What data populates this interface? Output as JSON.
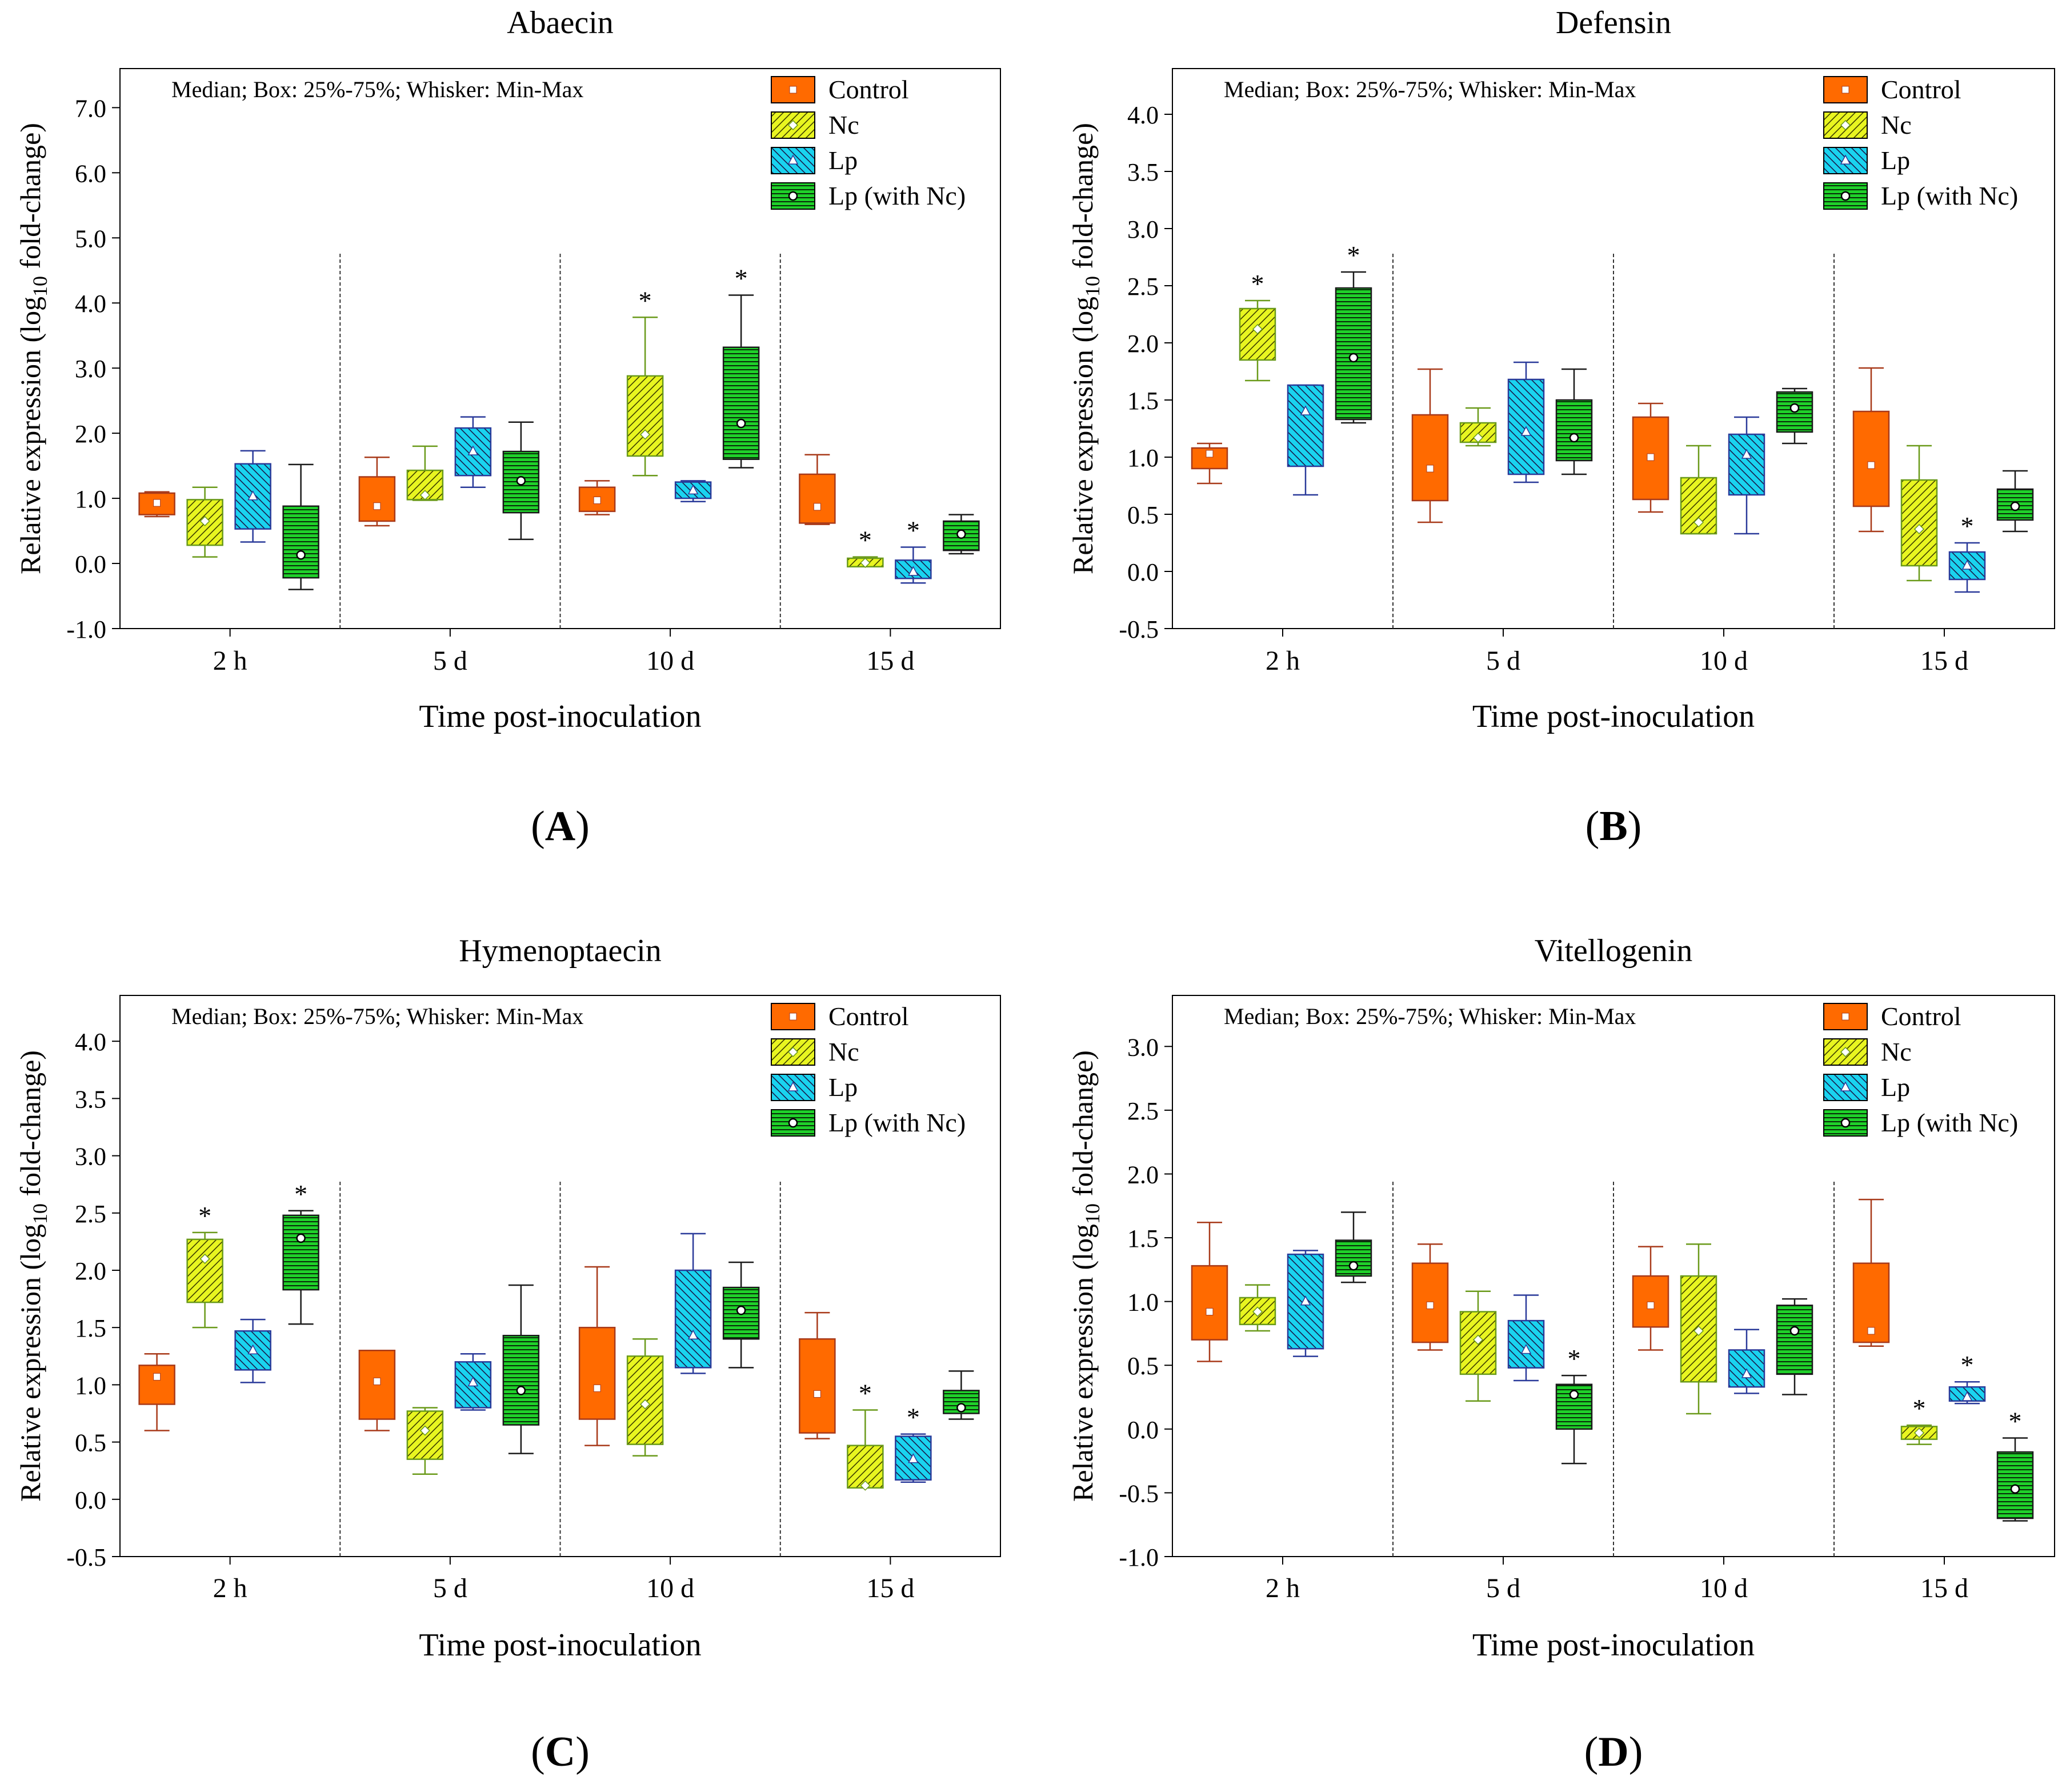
{
  "figure": {
    "legend_labels": [
      "Control",
      "Nc",
      "Lp",
      "Lp (with Nc)"
    ],
    "summary_note": "Median; Box: 25%-75%; Whisker: Min-Max",
    "colors": {
      "Control": "#ff6a00",
      "Nc": "#e8f520",
      "Lp": "#1ad3ef",
      "Lp (with Nc)": "#1fd12a"
    },
    "edge_colors": {
      "Control": "#a83a1a",
      "Nc": "#6a9a1a",
      "Lp": "#2a3a9a",
      "Lp (with Nc)": "#1a1a1a"
    }
  },
  "chart_data": [
    {
      "panel": "(A)",
      "title": "Abaecin",
      "type": "box",
      "xlabel": "Time post-inoculation",
      "ylabel": "Relative expression (log10 fold-change)",
      "ylim": [
        -1.0,
        7.6
      ],
      "yticks": [
        "-1.0",
        "0.0",
        "1.0",
        "2.0",
        "3.0",
        "4.0",
        "5.0",
        "6.0",
        "7.0"
      ],
      "categories": [
        "2 h",
        "5 d",
        "10 d",
        "15 d"
      ],
      "series": [
        {
          "name": "Control",
          "boxes": [
            {
              "min": 0.72,
              "q1": 0.75,
              "median": 0.93,
              "q3": 1.08,
              "max": 1.1,
              "sig": false
            },
            {
              "min": 0.58,
              "q1": 0.65,
              "median": 0.88,
              "q3": 1.33,
              "max": 1.63,
              "sig": false
            },
            {
              "min": 0.75,
              "q1": 0.8,
              "median": 0.97,
              "q3": 1.17,
              "max": 1.27,
              "sig": false
            },
            {
              "min": 0.6,
              "q1": 0.62,
              "median": 0.87,
              "q3": 1.37,
              "max": 1.67,
              "sig": false
            }
          ]
        },
        {
          "name": "Nc",
          "boxes": [
            {
              "min": 0.1,
              "q1": 0.28,
              "median": 0.65,
              "q3": 0.98,
              "max": 1.17,
              "sig": false
            },
            {
              "min": 0.97,
              "q1": 0.98,
              "median": 1.05,
              "q3": 1.43,
              "max": 1.8,
              "sig": false
            },
            {
              "min": 1.35,
              "q1": 1.65,
              "median": 1.98,
              "q3": 2.88,
              "max": 3.78,
              "sig": true
            },
            {
              "min": -0.05,
              "q1": -0.05,
              "median": 0.01,
              "q3": 0.08,
              "max": 0.1,
              "sig": true
            }
          ]
        },
        {
          "name": "Lp",
          "boxes": [
            {
              "min": 0.33,
              "q1": 0.53,
              "median": 1.03,
              "q3": 1.53,
              "max": 1.73,
              "sig": false
            },
            {
              "min": 1.17,
              "q1": 1.35,
              "median": 1.72,
              "q3": 2.08,
              "max": 2.25,
              "sig": false
            },
            {
              "min": 0.95,
              "q1": 1.0,
              "median": 1.12,
              "q3": 1.25,
              "max": 1.27,
              "sig": false
            },
            {
              "min": -0.3,
              "q1": -0.23,
              "median": -0.13,
              "q3": 0.05,
              "max": 0.25,
              "sig": true
            }
          ]
        },
        {
          "name": "Lp (with Nc)",
          "boxes": [
            {
              "min": -0.4,
              "q1": -0.22,
              "median": 0.13,
              "q3": 0.88,
              "max": 1.52,
              "sig": false
            },
            {
              "min": 0.37,
              "q1": 0.78,
              "median": 1.27,
              "q3": 1.72,
              "max": 2.17,
              "sig": false
            },
            {
              "min": 1.47,
              "q1": 1.6,
              "median": 2.15,
              "q3": 3.32,
              "max": 4.12,
              "sig": true
            },
            {
              "min": 0.15,
              "q1": 0.2,
              "median": 0.45,
              "q3": 0.65,
              "max": 0.75,
              "sig": false
            }
          ]
        }
      ]
    },
    {
      "panel": "(B)",
      "title": "Defensin",
      "type": "box",
      "xlabel": "Time post-inoculation",
      "ylabel": "Relative expression (log10 fold-change)",
      "ylim": [
        -0.5,
        4.4
      ],
      "yticks": [
        "-0.5",
        "0.0",
        "0.5",
        "1.0",
        "1.5",
        "2.0",
        "2.5",
        "3.0",
        "3.5",
        "4.0"
      ],
      "categories": [
        "2 h",
        "5 d",
        "10 d",
        "15 d"
      ],
      "series": [
        {
          "name": "Control",
          "boxes": [
            {
              "min": 0.77,
              "q1": 0.9,
              "median": 1.03,
              "q3": 1.08,
              "max": 1.12,
              "sig": false
            },
            {
              "min": 0.43,
              "q1": 0.62,
              "median": 0.9,
              "q3": 1.37,
              "max": 1.77,
              "sig": false
            },
            {
              "min": 0.52,
              "q1": 0.63,
              "median": 1.0,
              "q3": 1.35,
              "max": 1.47,
              "sig": false
            },
            {
              "min": 0.35,
              "q1": 0.57,
              "median": 0.93,
              "q3": 1.4,
              "max": 1.78,
              "sig": false
            }
          ]
        },
        {
          "name": "Nc",
          "boxes": [
            {
              "min": 1.67,
              "q1": 1.85,
              "median": 2.12,
              "q3": 2.3,
              "max": 2.37,
              "sig": true
            },
            {
              "min": 1.1,
              "q1": 1.13,
              "median": 1.17,
              "q3": 1.3,
              "max": 1.43,
              "sig": false
            },
            {
              "min": 0.33,
              "q1": 0.33,
              "median": 0.43,
              "q3": 0.82,
              "max": 1.1,
              "sig": false
            },
            {
              "min": -0.08,
              "q1": 0.05,
              "median": 0.37,
              "q3": 0.8,
              "max": 1.1,
              "sig": false
            }
          ]
        },
        {
          "name": "Lp",
          "boxes": [
            {
              "min": 0.67,
              "q1": 0.92,
              "median": 1.4,
              "q3": 1.63,
              "max": 1.63,
              "sig": false
            },
            {
              "min": 0.78,
              "q1": 0.85,
              "median": 1.22,
              "q3": 1.68,
              "max": 1.83,
              "sig": false
            },
            {
              "min": 0.33,
              "q1": 0.67,
              "median": 1.02,
              "q3": 1.2,
              "max": 1.35,
              "sig": false
            },
            {
              "min": -0.18,
              "q1": -0.07,
              "median": 0.05,
              "q3": 0.17,
              "max": 0.25,
              "sig": true
            }
          ]
        },
        {
          "name": "Lp (with Nc)",
          "boxes": [
            {
              "min": 1.3,
              "q1": 1.33,
              "median": 1.87,
              "q3": 2.48,
              "max": 2.62,
              "sig": true
            },
            {
              "min": 0.85,
              "q1": 0.97,
              "median": 1.17,
              "q3": 1.5,
              "max": 1.77,
              "sig": false
            },
            {
              "min": 1.12,
              "q1": 1.22,
              "median": 1.43,
              "q3": 1.57,
              "max": 1.6,
              "sig": false
            },
            {
              "min": 0.35,
              "q1": 0.45,
              "median": 0.57,
              "q3": 0.72,
              "max": 0.88,
              "sig": false
            }
          ]
        }
      ]
    },
    {
      "panel": "(C)",
      "title": "Hymenoptaecin",
      "type": "box",
      "xlabel": "Time post-inoculation",
      "ylabel": "Relative expression (log10 fold-change)",
      "ylim": [
        -0.5,
        4.4
      ],
      "yticks": [
        "-0.5",
        "0.0",
        "0.5",
        "1.0",
        "1.5",
        "2.0",
        "2.5",
        "3.0",
        "3.5",
        "4.0"
      ],
      "categories": [
        "2 h",
        "5 d",
        "10 d",
        "15 d"
      ],
      "series": [
        {
          "name": "Control",
          "boxes": [
            {
              "min": 0.6,
              "q1": 0.83,
              "median": 1.07,
              "q3": 1.17,
              "max": 1.27,
              "sig": false
            },
            {
              "min": 0.6,
              "q1": 0.7,
              "median": 1.03,
              "q3": 1.3,
              "max": 1.3,
              "sig": false
            },
            {
              "min": 0.47,
              "q1": 0.7,
              "median": 0.97,
              "q3": 1.5,
              "max": 2.03,
              "sig": false
            },
            {
              "min": 0.53,
              "q1": 0.58,
              "median": 0.92,
              "q3": 1.4,
              "max": 1.63,
              "sig": false
            }
          ]
        },
        {
          "name": "Nc",
          "boxes": [
            {
              "min": 1.5,
              "q1": 1.72,
              "median": 2.1,
              "q3": 2.27,
              "max": 2.33,
              "sig": true
            },
            {
              "min": 0.22,
              "q1": 0.35,
              "median": 0.6,
              "q3": 0.77,
              "max": 0.8,
              "sig": false
            },
            {
              "min": 0.38,
              "q1": 0.48,
              "median": 0.83,
              "q3": 1.25,
              "max": 1.4,
              "sig": false
            },
            {
              "min": 0.1,
              "q1": 0.1,
              "median": 0.12,
              "q3": 0.47,
              "max": 0.78,
              "sig": true
            }
          ]
        },
        {
          "name": "Lp",
          "boxes": [
            {
              "min": 1.02,
              "q1": 1.13,
              "median": 1.3,
              "q3": 1.47,
              "max": 1.57,
              "sig": false
            },
            {
              "min": 0.78,
              "q1": 0.8,
              "median": 1.02,
              "q3": 1.2,
              "max": 1.27,
              "sig": false
            },
            {
              "min": 1.1,
              "q1": 1.15,
              "median": 1.43,
              "q3": 2.0,
              "max": 2.32,
              "sig": false
            },
            {
              "min": 0.15,
              "q1": 0.17,
              "median": 0.35,
              "q3": 0.55,
              "max": 0.57,
              "sig": true
            }
          ]
        },
        {
          "name": "Lp (with Nc)",
          "boxes": [
            {
              "min": 1.53,
              "q1": 1.83,
              "median": 2.28,
              "q3": 2.48,
              "max": 2.52,
              "sig": true
            },
            {
              "min": 0.4,
              "q1": 0.65,
              "median": 0.95,
              "q3": 1.43,
              "max": 1.87,
              "sig": false
            },
            {
              "min": 1.15,
              "q1": 1.4,
              "median": 1.65,
              "q3": 1.85,
              "max": 2.07,
              "sig": false
            },
            {
              "min": 0.7,
              "q1": 0.75,
              "median": 0.8,
              "q3": 0.95,
              "max": 1.12,
              "sig": false
            }
          ]
        }
      ]
    },
    {
      "panel": "(D)",
      "title": "Vitellogenin",
      "type": "box",
      "xlabel": "Time post-inoculation",
      "ylabel": "Relative expression (log10 fold-change)",
      "ylim": [
        -1.0,
        3.4
      ],
      "yticks": [
        "-1.0",
        "-0.5",
        "0.0",
        "0.5",
        "1.0",
        "1.5",
        "2.0",
        "2.5",
        "3.0"
      ],
      "categories": [
        "2 h",
        "5 d",
        "10 d",
        "15 d"
      ],
      "series": [
        {
          "name": "Control",
          "boxes": [
            {
              "min": 0.53,
              "q1": 0.7,
              "median": 0.92,
              "q3": 1.28,
              "max": 1.62,
              "sig": false
            },
            {
              "min": 0.62,
              "q1": 0.68,
              "median": 0.97,
              "q3": 1.3,
              "max": 1.45,
              "sig": false
            },
            {
              "min": 0.62,
              "q1": 0.8,
              "median": 0.97,
              "q3": 1.2,
              "max": 1.43,
              "sig": false
            },
            {
              "min": 0.65,
              "q1": 0.68,
              "median": 0.77,
              "q3": 1.3,
              "max": 1.8,
              "sig": false
            }
          ]
        },
        {
          "name": "Nc",
          "boxes": [
            {
              "min": 0.77,
              "q1": 0.82,
              "median": 0.92,
              "q3": 1.03,
              "max": 1.13,
              "sig": false
            },
            {
              "min": 0.22,
              "q1": 0.43,
              "median": 0.7,
              "q3": 0.92,
              "max": 1.08,
              "sig": false
            },
            {
              "min": 0.12,
              "q1": 0.37,
              "median": 0.77,
              "q3": 1.2,
              "max": 1.45,
              "sig": false
            },
            {
              "min": -0.12,
              "q1": -0.08,
              "median": -0.03,
              "q3": 0.02,
              "max": 0.03,
              "sig": true
            }
          ]
        },
        {
          "name": "Lp",
          "boxes": [
            {
              "min": 0.57,
              "q1": 0.63,
              "median": 1.0,
              "q3": 1.37,
              "max": 1.4,
              "sig": false
            },
            {
              "min": 0.38,
              "q1": 0.48,
              "median": 0.62,
              "q3": 0.85,
              "max": 1.05,
              "sig": false
            },
            {
              "min": 0.28,
              "q1": 0.33,
              "median": 0.43,
              "q3": 0.62,
              "max": 0.78,
              "sig": false
            },
            {
              "min": 0.2,
              "q1": 0.22,
              "median": 0.25,
              "q3": 0.33,
              "max": 0.37,
              "sig": true
            }
          ]
        },
        {
          "name": "Lp (with Nc)",
          "boxes": [
            {
              "min": 1.15,
              "q1": 1.2,
              "median": 1.28,
              "q3": 1.48,
              "max": 1.7,
              "sig": false
            },
            {
              "min": -0.27,
              "q1": 0.0,
              "median": 0.27,
              "q3": 0.35,
              "max": 0.42,
              "sig": true
            },
            {
              "min": 0.27,
              "q1": 0.43,
              "median": 0.77,
              "q3": 0.97,
              "max": 1.02,
              "sig": false
            },
            {
              "min": -0.72,
              "q1": -0.7,
              "median": -0.47,
              "q3": -0.18,
              "max": -0.07,
              "sig": true
            }
          ]
        }
      ]
    }
  ]
}
